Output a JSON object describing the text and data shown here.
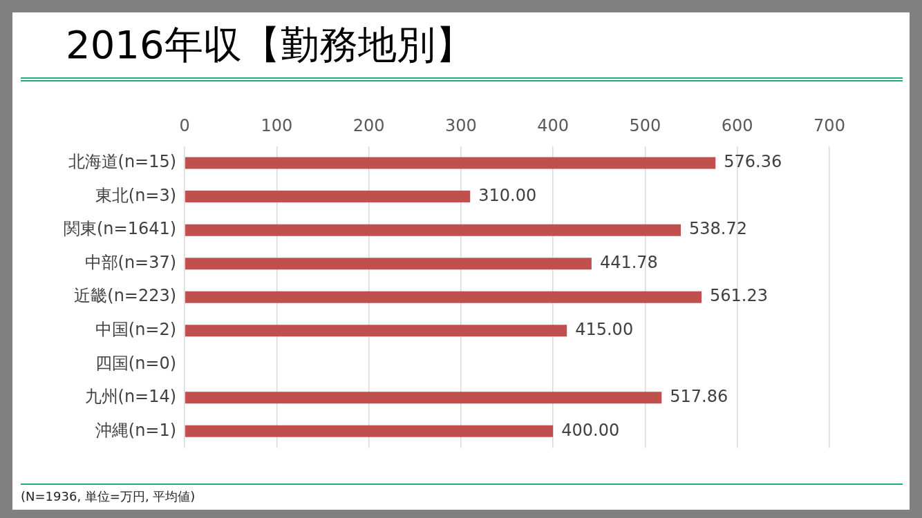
{
  "chart_data": {
    "type": "bar",
    "orientation": "horizontal",
    "title": "2016年収【勤務地別】",
    "categories": [
      "北海道(n=15)",
      "東北(n=3)",
      "関東(n=1641)",
      "中部(n=37)",
      "近畿(n=223)",
      "中国(n=2)",
      "四国(n=0)",
      "九州(n=14)",
      "沖縄(n=1)"
    ],
    "values": [
      576.36,
      310.0,
      538.72,
      441.78,
      561.23,
      415.0,
      null,
      517.86,
      400.0
    ],
    "value_labels": [
      "576.36",
      "310.00",
      "538.72",
      "441.78",
      "561.23",
      "415.00",
      null,
      "517.86",
      "400.00"
    ],
    "color": "#c0504d",
    "xlim": [
      0,
      700
    ],
    "xticks": [
      0,
      100,
      200,
      300,
      400,
      500,
      600,
      700
    ],
    "grid": "x",
    "legend": false,
    "annotations": [
      "(N=1936, 単位=万円, 平均値)"
    ]
  }
}
